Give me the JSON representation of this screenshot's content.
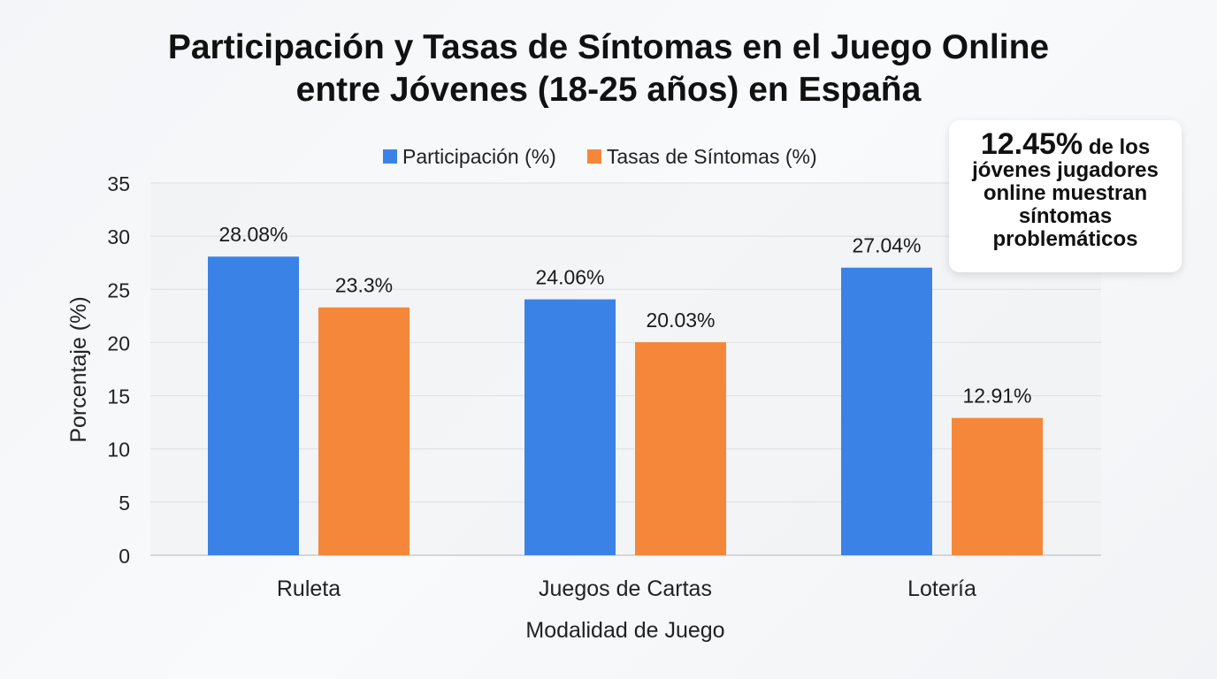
{
  "title_line1": "Participación y Tasas de Síntomas en el Juego Online",
  "title_line2": "entre Jóvenes (18-25 años) en España",
  "callout": {
    "value": "12.45%",
    "text_first": "de los",
    "text_rest": "jóvenes jugadores online muestran síntomas problemáticos"
  },
  "chart_data": {
    "type": "bar",
    "title": "Participación y Tasas de Síntomas en el Juego Online entre Jóvenes (18-25 años) en España",
    "xlabel": "Modalidad de Juego",
    "ylabel": "Porcentaje (%)",
    "ylim": [
      0,
      35
    ],
    "yticks": [
      0,
      5,
      10,
      15,
      20,
      25,
      30,
      35
    ],
    "grid": true,
    "legend_position": "top",
    "categories": [
      "Ruleta",
      "Juegos de Cartas",
      "Lotería"
    ],
    "series": [
      {
        "name": "Participación (%)",
        "values": [
          28.08,
          24.06,
          27.04
        ],
        "labels": [
          "28.08%",
          "24.06%",
          "27.04%"
        ],
        "color": "#3b82e6"
      },
      {
        "name": "Tasas de Síntomas (%)",
        "values": [
          23.3,
          20.03,
          12.91
        ],
        "labels": [
          "23.3%",
          "20.03%",
          "12.91%"
        ],
        "color": "#f5873a"
      }
    ]
  }
}
